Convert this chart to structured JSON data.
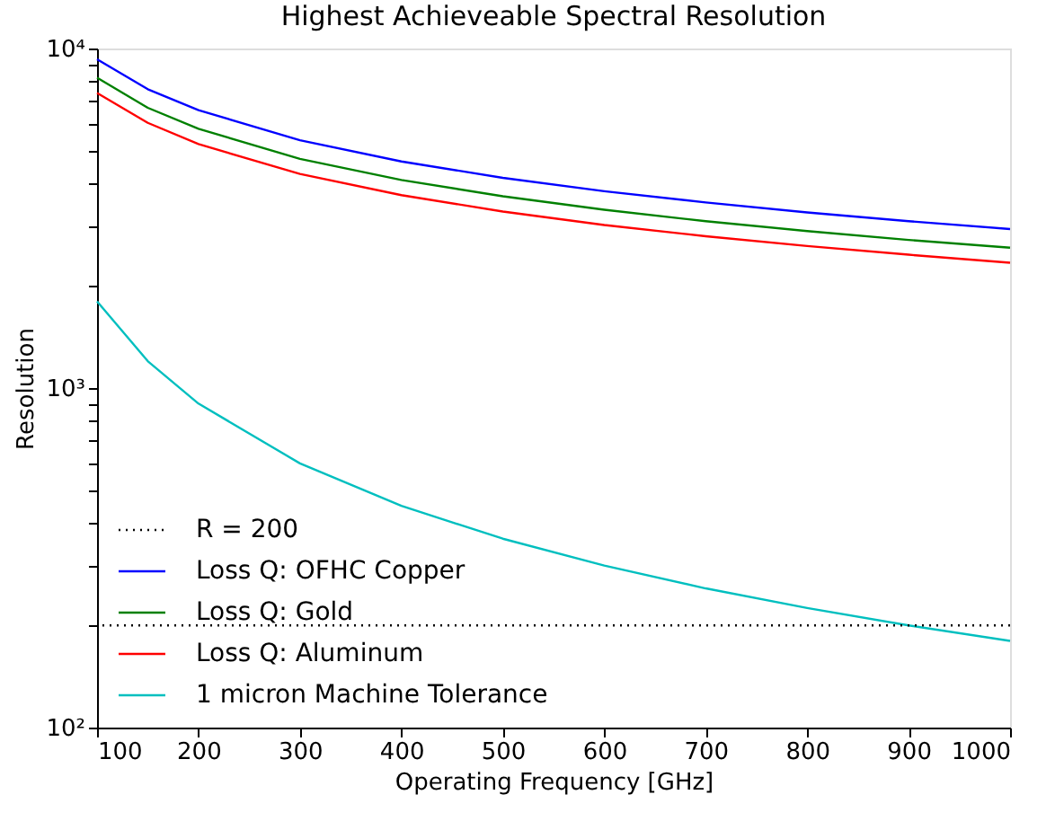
{
  "chart_data": {
    "type": "line",
    "title": "Highest Achieveable Spectral Resolution",
    "xlabel": "Operating Frequency [GHz]",
    "ylabel": "Resolution",
    "x": [
      100,
      150,
      200,
      300,
      400,
      500,
      600,
      700,
      800,
      900,
      1000
    ],
    "series": [
      {
        "name": "Loss Q: OFHC Copper",
        "color": "#0000ff",
        "values": [
          9300,
          7590,
          6580,
          5370,
          4650,
          4160,
          3800,
          3520,
          3290,
          3100,
          2940
        ]
      },
      {
        "name": "Loss Q: Gold",
        "color": "#008000",
        "values": [
          8200,
          6690,
          5800,
          4730,
          4100,
          3670,
          3350,
          3100,
          2900,
          2730,
          2590
        ]
      },
      {
        "name": "Loss Q: Aluminum",
        "color": "#ff0000",
        "values": [
          7400,
          6040,
          5230,
          4270,
          3700,
          3310,
          3020,
          2800,
          2620,
          2470,
          2340
        ]
      },
      {
        "name": "1 micron Machine Tolerance",
        "color": "#00bfbf",
        "values": [
          1800,
          1200,
          900,
          600,
          450,
          360,
          300,
          257,
          225,
          200,
          180
        ]
      }
    ],
    "ref_lines": [
      {
        "axis": "y",
        "value": 200,
        "label": "R = 200",
        "line_style": "dotted",
        "color": "#000000"
      }
    ],
    "log": "y",
    "xlim": [
      100,
      1000
    ],
    "xticks": [
      100,
      200,
      300,
      400,
      500,
      600,
      700,
      800,
      900,
      1000
    ],
    "ylim": [
      100,
      10000
    ],
    "yticks": [
      {
        "value": 100,
        "label": "10²"
      },
      {
        "value": 200,
        "label": null
      },
      {
        "value": 300,
        "label": null
      },
      {
        "value": 400,
        "label": null
      },
      {
        "value": 500,
        "label": null
      },
      {
        "value": 600,
        "label": null
      },
      {
        "value": 700,
        "label": null
      },
      {
        "value": 800,
        "label": null
      },
      {
        "value": 900,
        "label": null
      },
      {
        "value": 1000,
        "label": "10³"
      },
      {
        "value": 2000,
        "label": null
      },
      {
        "value": 3000,
        "label": null
      },
      {
        "value": 4000,
        "label": null
      },
      {
        "value": 5000,
        "label": null
      },
      {
        "value": 6000,
        "label": null
      },
      {
        "value": 7000,
        "label": null
      },
      {
        "value": 8000,
        "label": null
      },
      {
        "value": 9000,
        "label": null
      },
      {
        "value": 10000,
        "label": "10⁴"
      }
    ],
    "grid": false,
    "legend": "bottom left",
    "line_style": "solid",
    "marker": "none"
  }
}
